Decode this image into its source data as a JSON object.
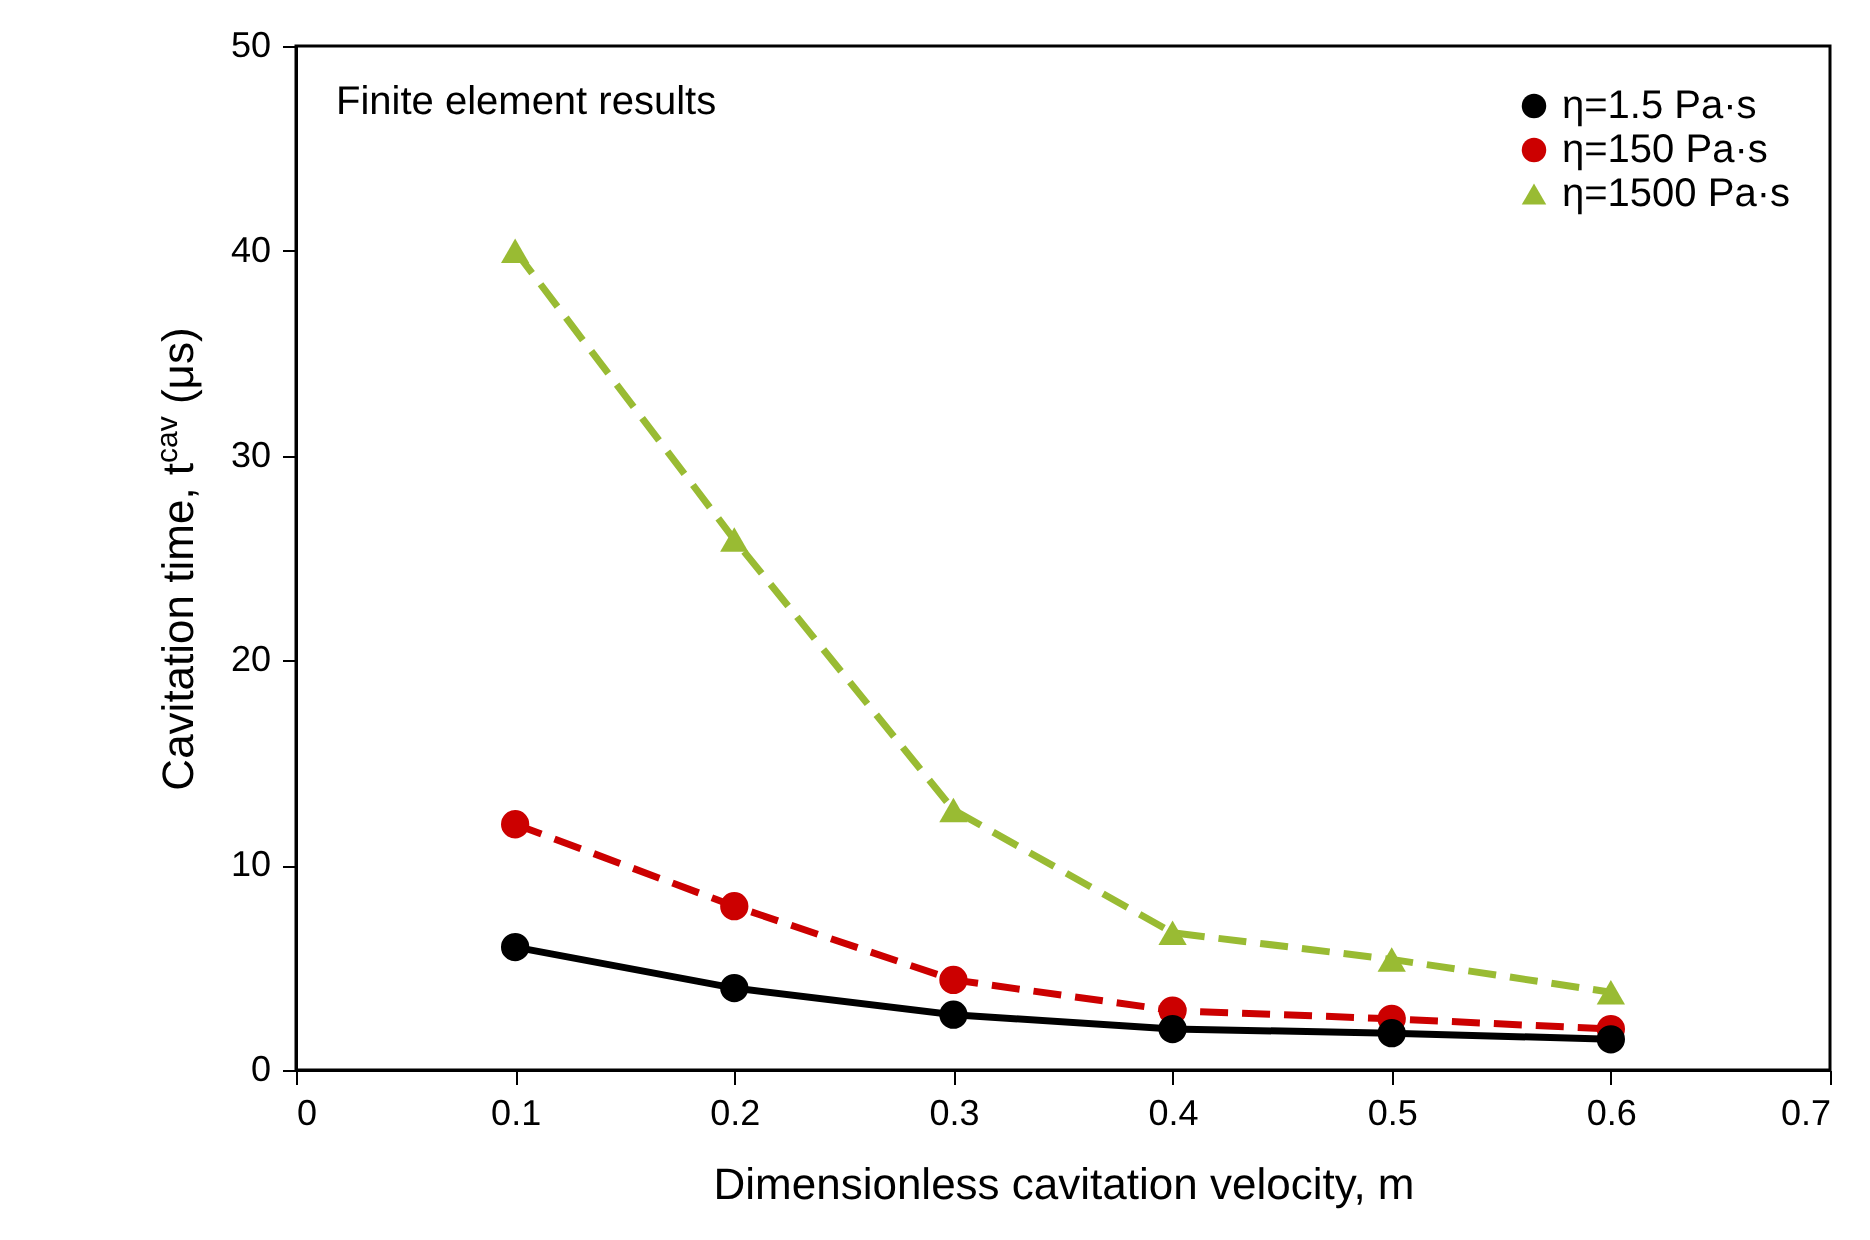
{
  "chart_data": {
    "type": "line",
    "xlabel": "Dimensionless cavitation velocity, m",
    "ylabel": "Cavitation time, t$^{cav}$ (μs)",
    "annotations": [
      "Finite element results"
    ],
    "x": [
      0.1,
      0.2,
      0.3,
      0.4,
      0.5,
      0.6
    ],
    "series": [
      {
        "name": "η=1.5 Pa·s",
        "color": "#000000",
        "marker": "circle",
        "line_style": "solid",
        "values": [
          6,
          4,
          2.7,
          2,
          1.8,
          1.5
        ]
      },
      {
        "name": "η=150 Pa·s",
        "color": "#cc0000",
        "marker": "circle",
        "line_style": "dashed",
        "values": [
          12,
          8,
          4.4,
          2.9,
          2.5,
          2
        ]
      },
      {
        "name": "η=1500 Pa·s",
        "color": "#99bb33",
        "marker": "triangle",
        "line_style": "dashed",
        "values": [
          40,
          25.9,
          12.7,
          6.7,
          5.4,
          3.8
        ]
      }
    ],
    "xlim": [
      0,
      0.7
    ],
    "xticks": [
      0,
      0.1,
      0.2,
      0.3,
      0.4,
      0.5,
      0.6,
      0.7
    ],
    "ylim": [
      0,
      50
    ],
    "yticks": [
      0,
      10,
      20,
      30,
      40,
      50
    ],
    "grid": false,
    "legend": "top right"
  }
}
